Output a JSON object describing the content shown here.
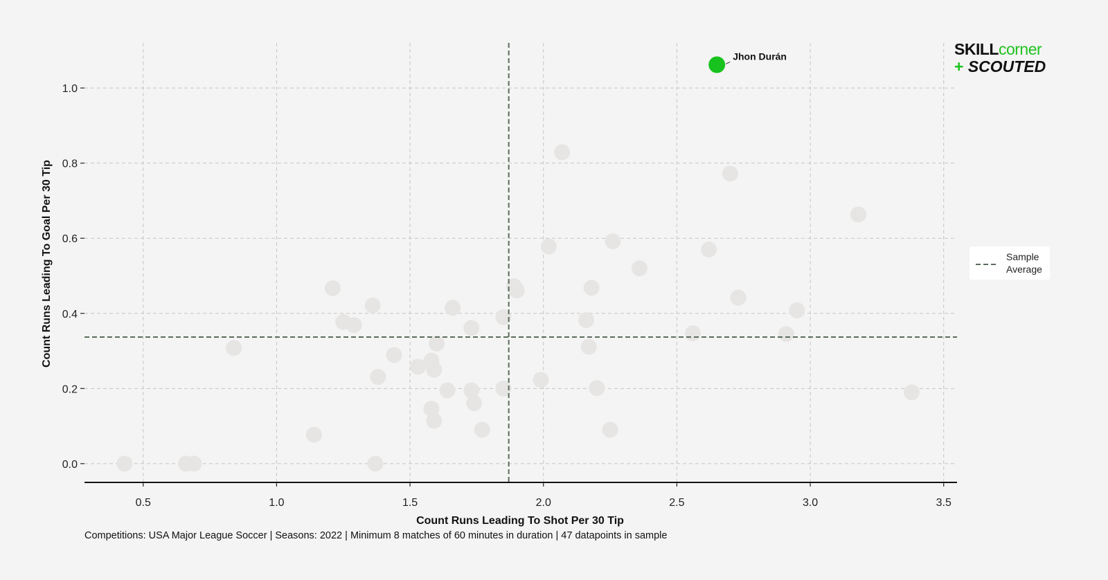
{
  "chart_data": {
    "type": "scatter",
    "xlabel": "Count Runs Leading To Shot Per 30 Tip",
    "ylabel": "Count Runs Leading To Goal Per 30 Tip",
    "xlim": [
      0.28,
      3.55
    ],
    "ylim": [
      -0.05,
      1.12
    ],
    "xticks": [
      0.5,
      1.0,
      1.5,
      2.0,
      2.5,
      3.0,
      3.5
    ],
    "xtick_labels": [
      "0.5",
      "1.0",
      "1.5",
      "2.0",
      "2.5",
      "3.0",
      "3.5"
    ],
    "yticks": [
      0.0,
      0.2,
      0.4,
      0.6,
      0.8,
      1.0
    ],
    "ytick_labels": [
      "0.0",
      "0.2",
      "0.4",
      "0.6",
      "0.8",
      "1.0"
    ],
    "grid": true,
    "averages": {
      "x": 1.87,
      "y": 0.337
    },
    "legend": {
      "label_line1": "Sample",
      "label_line2": "Average",
      "placement": "right"
    },
    "highlight": {
      "name": "Jhon Durán",
      "x": 2.65,
      "y": 1.062,
      "color": "#18c21e"
    },
    "point_color": "#e6e5e3",
    "points": [
      {
        "x": 0.43,
        "y": 0.0
      },
      {
        "x": 0.66,
        "y": 0.0
      },
      {
        "x": 0.69,
        "y": 0.0
      },
      {
        "x": 0.84,
        "y": 0.308
      },
      {
        "x": 1.14,
        "y": 0.077
      },
      {
        "x": 1.21,
        "y": 0.467
      },
      {
        "x": 1.25,
        "y": 0.377
      },
      {
        "x": 1.29,
        "y": 0.369
      },
      {
        "x": 1.36,
        "y": 0.421
      },
      {
        "x": 1.37,
        "y": 0.0
      },
      {
        "x": 1.38,
        "y": 0.231
      },
      {
        "x": 1.44,
        "y": 0.289
      },
      {
        "x": 1.53,
        "y": 0.258
      },
      {
        "x": 1.58,
        "y": 0.274
      },
      {
        "x": 1.58,
        "y": 0.146
      },
      {
        "x": 1.59,
        "y": 0.25
      },
      {
        "x": 1.59,
        "y": 0.114
      },
      {
        "x": 1.6,
        "y": 0.32
      },
      {
        "x": 1.64,
        "y": 0.195
      },
      {
        "x": 1.66,
        "y": 0.415
      },
      {
        "x": 1.73,
        "y": 0.361
      },
      {
        "x": 1.73,
        "y": 0.195
      },
      {
        "x": 1.74,
        "y": 0.161
      },
      {
        "x": 1.77,
        "y": 0.09
      },
      {
        "x": 1.85,
        "y": 0.39
      },
      {
        "x": 1.85,
        "y": 0.2
      },
      {
        "x": 1.89,
        "y": 0.472
      },
      {
        "x": 1.9,
        "y": 0.461
      },
      {
        "x": 1.99,
        "y": 0.223
      },
      {
        "x": 2.02,
        "y": 0.578
      },
      {
        "x": 2.07,
        "y": 0.829
      },
      {
        "x": 2.16,
        "y": 0.382
      },
      {
        "x": 2.17,
        "y": 0.311
      },
      {
        "x": 2.18,
        "y": 0.468
      },
      {
        "x": 2.2,
        "y": 0.201
      },
      {
        "x": 2.25,
        "y": 0.09
      },
      {
        "x": 2.26,
        "y": 0.592
      },
      {
        "x": 2.36,
        "y": 0.52
      },
      {
        "x": 2.56,
        "y": 0.347
      },
      {
        "x": 2.62,
        "y": 0.57
      },
      {
        "x": 2.7,
        "y": 0.772
      },
      {
        "x": 2.73,
        "y": 0.442
      },
      {
        "x": 2.91,
        "y": 0.345
      },
      {
        "x": 2.95,
        "y": 0.408
      },
      {
        "x": 3.18,
        "y": 0.663
      },
      {
        "x": 3.38,
        "y": 0.19
      }
    ]
  },
  "footnote": "Competitions: USA Major League Soccer | Seasons: 2022 | Minimum 8 matches of 60 minutes in duration | 47 datapoints in sample",
  "logo": {
    "line1_a": "SKILL",
    "line1_b": "corner",
    "line2_plus": "+",
    "line2": "SCOUTED"
  }
}
